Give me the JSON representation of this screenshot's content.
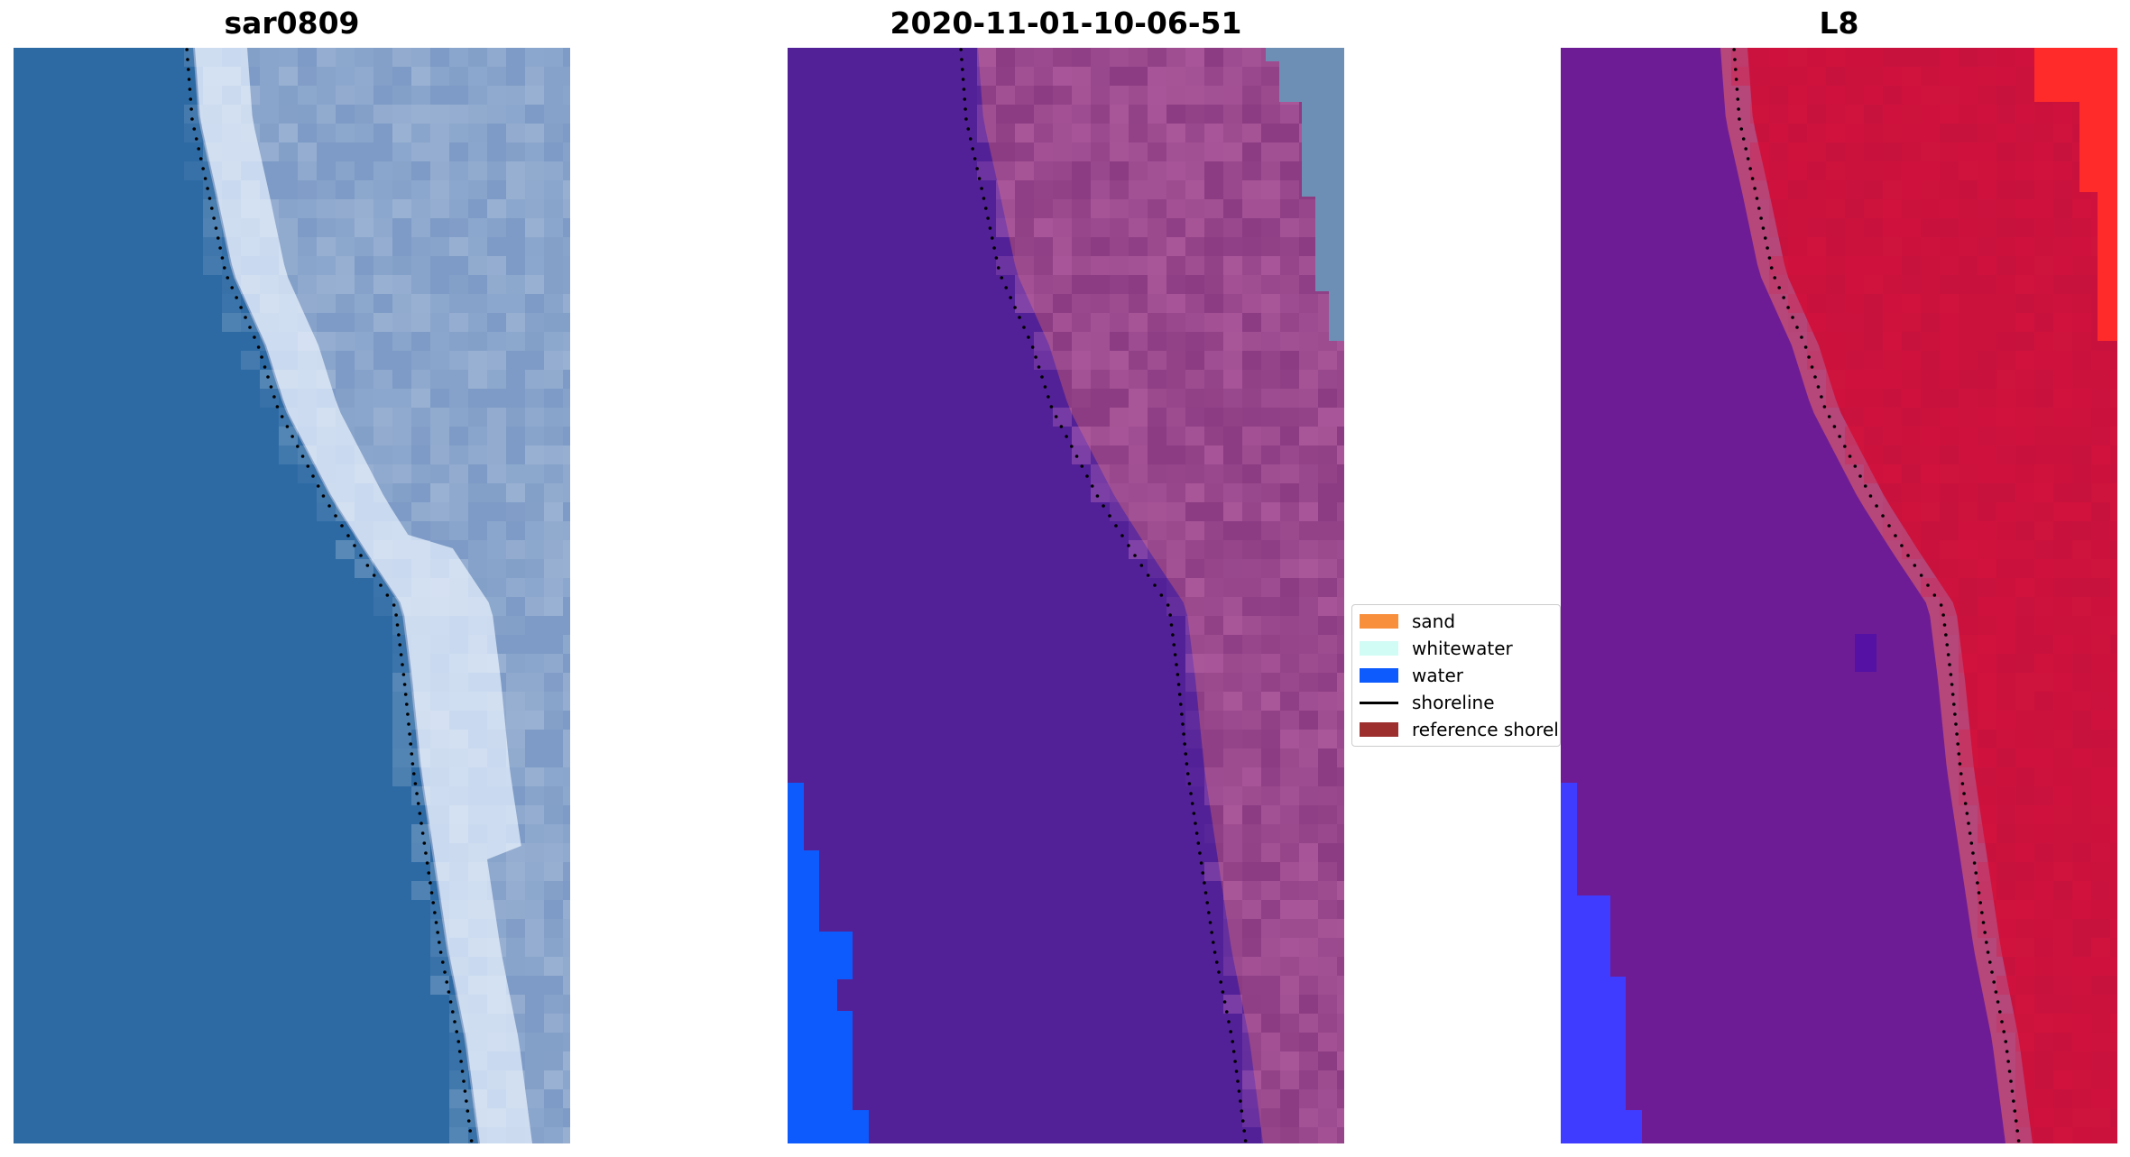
{
  "colors": {
    "sand": "#f88f3c",
    "whitewater": "#d1fcf6",
    "water": "#0d5bfd",
    "shoreline": "#000000",
    "reference_shoreline": "#9d2f2f",
    "ocean_rgb": "#2d6aa4",
    "land_rgb": "#7d9bc6",
    "surf_rgb": "#d6e4f6",
    "class_water_mask": "#522198",
    "class_land": "#8b3c82",
    "index_water": "#6e1c96",
    "index_land": "#c8123e",
    "index_bright_red": "#ff2a2a",
    "index_blue": "#3f3cff"
  },
  "chart_data": [
    {
      "type": "heatmap",
      "title": "sar0809",
      "description_key": "rgb",
      "legend": null
    },
    {
      "type": "heatmap",
      "title": "2020-11-01-10-06-51",
      "description_key": "classified",
      "legend": {
        "placement": "center-right",
        "entries": [
          {
            "label": "sand",
            "kind": "patch",
            "color": "#f88f3c"
          },
          {
            "label": "whitewater",
            "kind": "patch",
            "color": "#d1fcf6"
          },
          {
            "label": "water",
            "kind": "patch",
            "color": "#0d5bfd"
          },
          {
            "label": "shoreline",
            "kind": "line",
            "color": "#000000"
          },
          {
            "label": "reference shoreline",
            "kind": "patch",
            "color": "#9d2f2f"
          }
        ]
      }
    },
    {
      "type": "heatmap",
      "title": "L8",
      "description_key": "index",
      "legend": null
    }
  ],
  "legend_labels": [
    "sand",
    "whitewater",
    "water",
    "shoreline",
    "reference shoreline"
  ]
}
